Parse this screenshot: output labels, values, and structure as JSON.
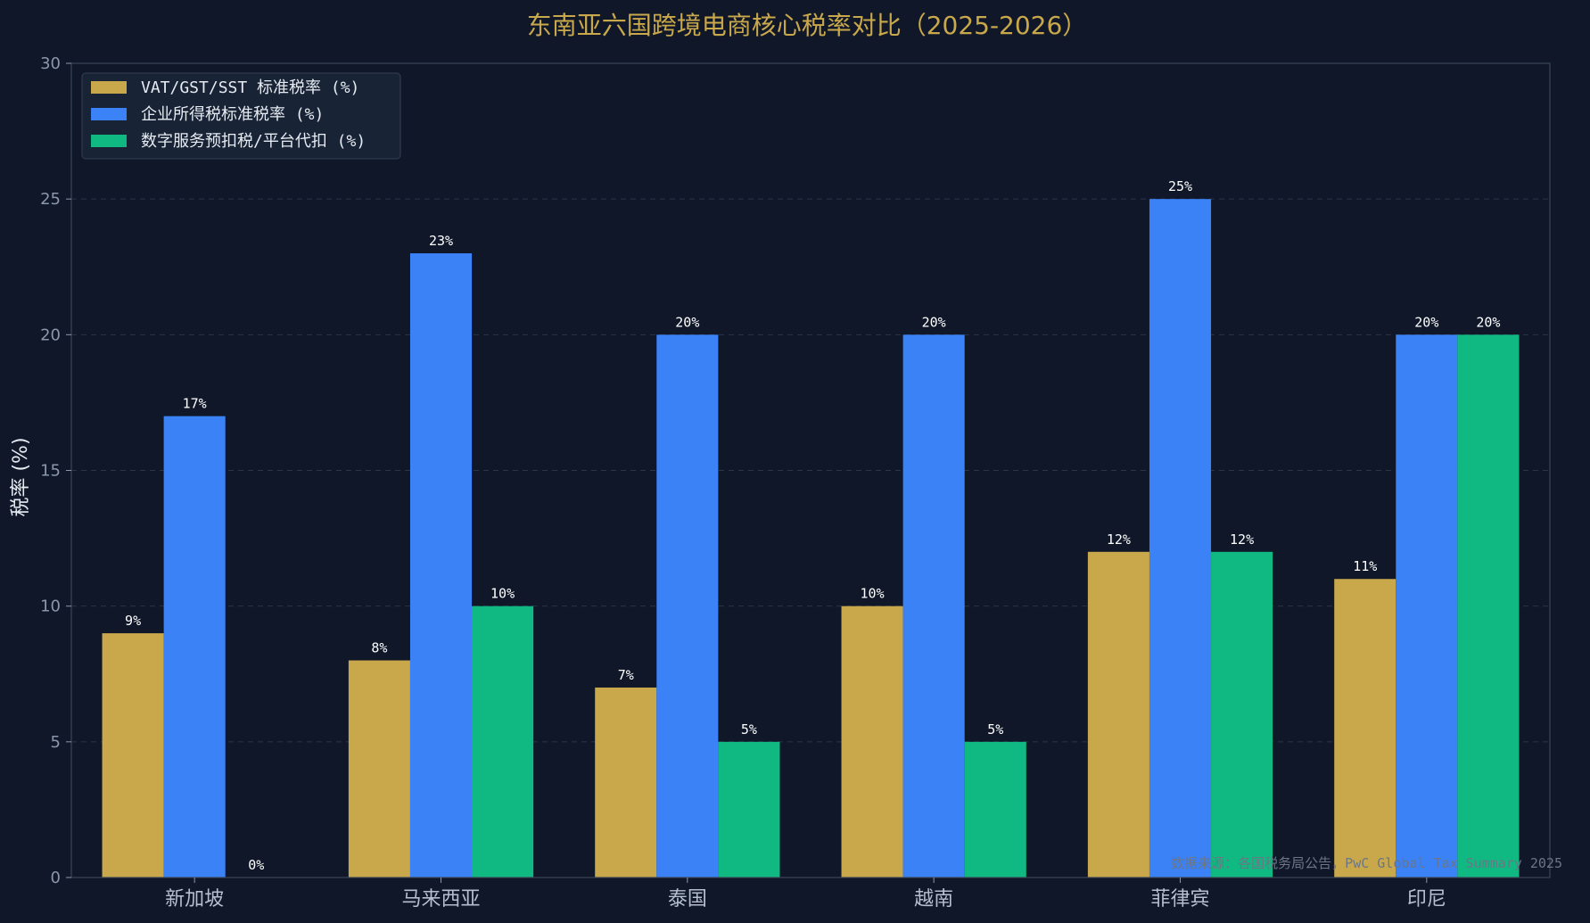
{
  "chart_data": {
    "type": "bar",
    "title": "东南亚六国跨境电商核心税率对比（2025-2026）",
    "xlabel": "",
    "ylabel": "税率 (%)",
    "ylim": [
      0,
      30
    ],
    "yticks": [
      0,
      5,
      10,
      15,
      20,
      25,
      30
    ],
    "grid": true,
    "legend_position": "top-left",
    "categories": [
      "新加坡",
      "马来西亚",
      "泰国",
      "越南",
      "菲律宾",
      "印尼"
    ],
    "series": [
      {
        "name": "VAT/GST/SST 标准税率 (%)",
        "color": "#c9a84c",
        "values": [
          9,
          8,
          7,
          10,
          12,
          11
        ],
        "labels": [
          "9%",
          "8%",
          "7%",
          "10%",
          "12%",
          "11%"
        ]
      },
      {
        "name": "企业所得税标准税率 (%)",
        "color": "#3b82f6",
        "values": [
          17,
          23,
          20,
          20,
          25,
          20
        ],
        "labels": [
          "17%",
          "23%",
          "20%",
          "20%",
          "25%",
          "20%"
        ]
      },
      {
        "name": "数字服务预扣税/平台代扣 (%)",
        "color": "#10b981",
        "values": [
          0,
          10,
          5,
          5,
          12,
          20
        ],
        "labels": [
          "0%",
          "10%",
          "5%",
          "5%",
          "12%",
          "20%"
        ]
      }
    ],
    "source_note": "数据来源：各国税务局公告，PwC Global Tax Summary 2025"
  }
}
